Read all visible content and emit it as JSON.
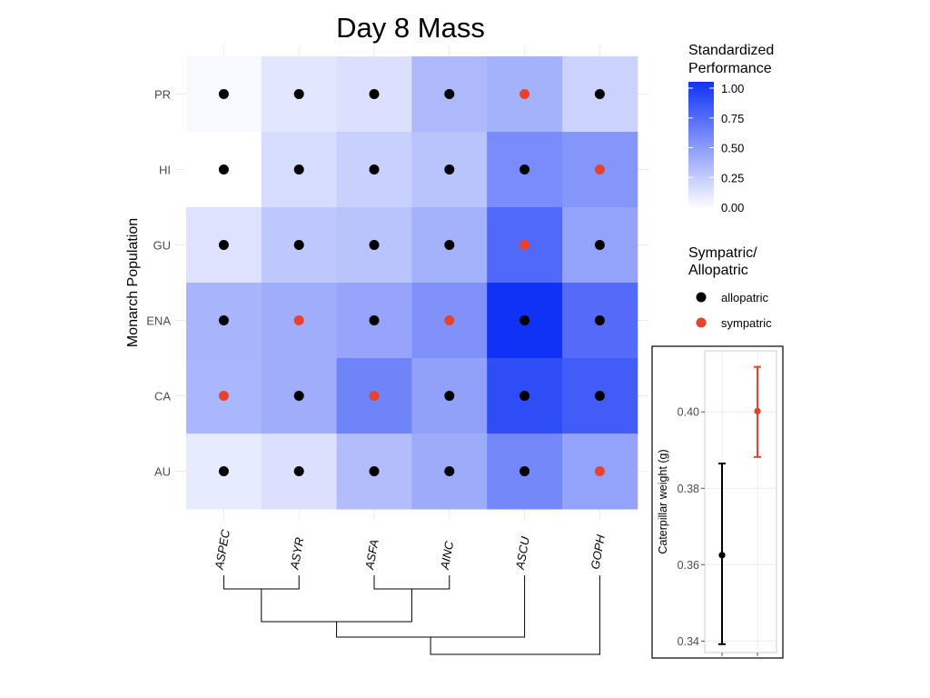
{
  "chart_data": [
    {
      "type": "heatmap",
      "title": "Day 8 Mass",
      "ylabel": "Monarch Population",
      "x_categories": [
        "ASPEC",
        "ASYR",
        "ASFA",
        "AINC",
        "ASCU",
        "GOPH"
      ],
      "y_categories": [
        "PR",
        "HI",
        "GU",
        "ENA",
        "CA",
        "AU"
      ],
      "values": [
        [
          0.03,
          0.12,
          0.15,
          0.34,
          0.38,
          0.22
        ],
        [
          0.0,
          0.17,
          0.23,
          0.29,
          0.56,
          0.51
        ],
        [
          0.14,
          0.27,
          0.29,
          0.38,
          0.73,
          0.45
        ],
        [
          0.36,
          0.4,
          0.44,
          0.53,
          1.0,
          0.72
        ],
        [
          0.35,
          0.4,
          0.6,
          0.46,
          0.87,
          0.79
        ],
        [
          0.1,
          0.15,
          0.32,
          0.41,
          0.58,
          0.45
        ]
      ],
      "sympatric": [
        [
          false,
          false,
          false,
          false,
          true,
          false
        ],
        [
          false,
          false,
          false,
          false,
          false,
          true
        ],
        [
          false,
          false,
          false,
          false,
          true,
          false
        ],
        [
          false,
          true,
          false,
          true,
          false,
          false
        ],
        [
          true,
          false,
          true,
          false,
          false,
          false
        ],
        [
          false,
          false,
          false,
          false,
          false,
          true
        ]
      ],
      "color_scale": {
        "title_line1": "Standardized",
        "title_line2": "Performance",
        "ticks": [
          "1.00",
          "0.75",
          "0.50",
          "0.25",
          "0.00"
        ],
        "low_color": "#ffffff",
        "high_color": "#1032f5"
      },
      "point_legend": {
        "title_line1": "Sympatric/",
        "title_line2": "Allopatric",
        "items": [
          {
            "label": "allopatric",
            "color": "#000000"
          },
          {
            "label": "sympatric",
            "color": "#e8412c"
          }
        ]
      },
      "dendrogram": "((ASPEC,ASYR),(ASFA,AINC)),ASCU),GOPH"
    },
    {
      "type": "scatter",
      "ylabel": "Caterpillar weight (g)",
      "ylim": [
        0.337,
        0.416
      ],
      "yticks": [
        "0.34",
        "0.36",
        "0.38",
        "0.40"
      ],
      "points": [
        {
          "group": "allopatric",
          "mean": 0.3625,
          "lower": 0.3392,
          "upper": 0.3865,
          "color": "#000000"
        },
        {
          "group": "sympatric",
          "mean": 0.4002,
          "lower": 0.3882,
          "upper": 0.4118,
          "color": "#e8412c"
        }
      ]
    }
  ]
}
